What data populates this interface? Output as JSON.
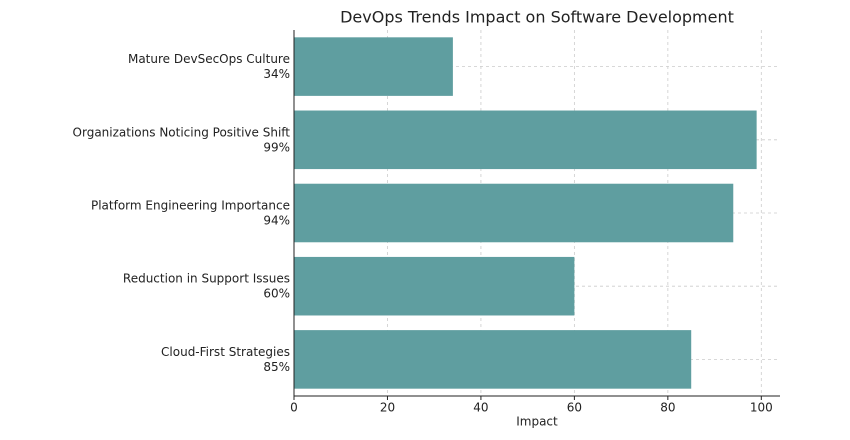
{
  "chart_data": {
    "type": "bar",
    "orientation": "horizontal",
    "title": "DevOps Trends Impact on Software Development",
    "x_label": "Impact",
    "categories": [
      "Mature DevSecOps Culture",
      "Organizations Noticing Positive Shift",
      "Platform Engineering Importance",
      "Reduction in Support Issues",
      "Cloud-First Strategies"
    ],
    "values": [
      34,
      99,
      94,
      60,
      85
    ],
    "value_labels": [
      "34%",
      "99%",
      "94%",
      "60%",
      "85%"
    ],
    "color": "#5f9ea0",
    "xlim": [
      0,
      104
    ],
    "xticks": [
      0,
      20,
      40,
      60,
      80,
      100
    ],
    "grid": true
  }
}
